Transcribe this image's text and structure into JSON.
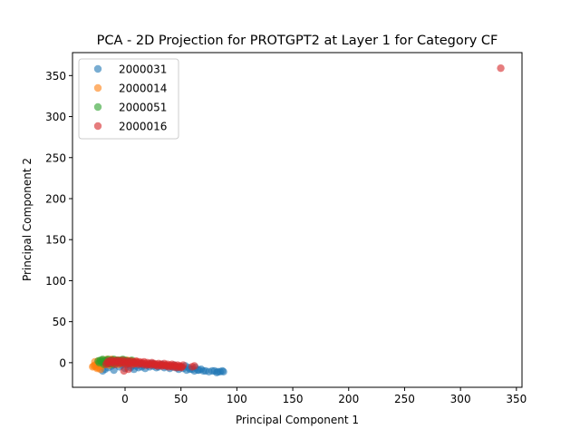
{
  "chart_data": {
    "type": "scatter",
    "title": "PCA - 2D Projection for PROTGPT2 at Layer 1 for Category CF",
    "xlabel": "Principal Component 1",
    "ylabel": "Principal Component 2",
    "xlim": [
      -47,
      355
    ],
    "ylim": [
      -30,
      378
    ],
    "xticks": [
      0,
      50,
      100,
      150,
      200,
      250,
      300,
      350
    ],
    "yticks": [
      0,
      50,
      100,
      150,
      200,
      250,
      300,
      350
    ],
    "grid": false,
    "legend_position": "top-left",
    "series": [
      {
        "name": "2000031",
        "color": "#1f77b4",
        "points": [
          [
            -20,
            -10
          ],
          [
            -18,
            -8
          ],
          [
            -15,
            -6
          ],
          [
            -12,
            -4
          ],
          [
            -10,
            -9
          ],
          [
            -5,
            -5
          ],
          [
            0,
            -7
          ],
          [
            5,
            -6
          ],
          [
            8,
            -8
          ],
          [
            10,
            -4
          ],
          [
            12,
            -6
          ],
          [
            15,
            -5
          ],
          [
            18,
            -7
          ],
          [
            20,
            -3
          ],
          [
            22,
            -5
          ],
          [
            25,
            -4
          ],
          [
            28,
            -6
          ],
          [
            30,
            -5
          ],
          [
            32,
            -3
          ],
          [
            35,
            -6
          ],
          [
            38,
            -4
          ],
          [
            40,
            -7
          ],
          [
            42,
            -5
          ],
          [
            45,
            -6
          ],
          [
            48,
            -8
          ],
          [
            50,
            -5
          ],
          [
            52,
            -7
          ],
          [
            55,
            -9
          ],
          [
            57,
            -6
          ],
          [
            60,
            -8
          ],
          [
            62,
            -10
          ],
          [
            65,
            -9
          ],
          [
            68,
            -8
          ],
          [
            70,
            -10
          ],
          [
            75,
            -11
          ],
          [
            80,
            -10
          ],
          [
            82,
            -12
          ],
          [
            85,
            -11
          ],
          [
            87,
            -10
          ],
          [
            88,
            -11
          ],
          [
            83,
            -11
          ],
          [
            78,
            -10
          ],
          [
            72,
            -10
          ],
          [
            66,
            -9
          ],
          [
            58,
            -8
          ],
          [
            47,
            -6
          ],
          [
            36,
            -4
          ],
          [
            26,
            -2
          ],
          [
            16,
            -3
          ],
          [
            6,
            -4
          ],
          [
            -3,
            -3
          ],
          [
            -8,
            -2
          ],
          [
            2,
            -2
          ],
          [
            14,
            -1
          ],
          [
            24,
            -1
          ],
          [
            33,
            -2
          ],
          [
            44,
            -3
          ],
          [
            54,
            -4
          ],
          [
            63,
            -6
          ]
        ]
      },
      {
        "name": "2000014",
        "color": "#ff7f0e",
        "points": [
          [
            -28,
            -4
          ],
          [
            -27,
            -3
          ],
          [
            -26,
            -5
          ],
          [
            -25,
            -2
          ],
          [
            -24,
            -6
          ],
          [
            -23,
            -1
          ],
          [
            -22,
            -4
          ],
          [
            -21,
            0
          ],
          [
            -20,
            -3
          ],
          [
            -19,
            1
          ],
          [
            -18,
            -2
          ],
          [
            -17,
            2
          ],
          [
            -16,
            -1
          ],
          [
            -15,
            1
          ],
          [
            -14,
            -3
          ],
          [
            -13,
            0
          ],
          [
            -12,
            2
          ],
          [
            -11,
            -1
          ],
          [
            -10,
            1
          ],
          [
            -9,
            3
          ],
          [
            -8,
            0
          ],
          [
            -7,
            2
          ],
          [
            -6,
            -2
          ],
          [
            -5,
            1
          ],
          [
            -4,
            3
          ],
          [
            -3,
            0
          ],
          [
            -2,
            2
          ],
          [
            0,
            1
          ],
          [
            2,
            3
          ],
          [
            4,
            0
          ],
          [
            6,
            2
          ],
          [
            8,
            -1
          ],
          [
            10,
            1
          ],
          [
            -25,
            -7
          ],
          [
            -22,
            -8
          ],
          [
            -29,
            -5
          ],
          [
            -27,
            1
          ],
          [
            -24,
            2
          ],
          [
            -20,
            3
          ],
          [
            -16,
            4
          ],
          [
            -12,
            4
          ]
        ]
      },
      {
        "name": "2000051",
        "color": "#2ca02c",
        "points": [
          [
            -24,
            2
          ],
          [
            -23,
            0
          ],
          [
            -22,
            3
          ],
          [
            -21,
            1
          ],
          [
            -20,
            4
          ],
          [
            -19,
            2
          ],
          [
            -18,
            0
          ],
          [
            -17,
            3
          ],
          [
            -16,
            1
          ],
          [
            -15,
            4
          ],
          [
            -14,
            2
          ],
          [
            -13,
            -1
          ],
          [
            -12,
            3
          ],
          [
            -11,
            1
          ],
          [
            -10,
            4
          ],
          [
            -9,
            2
          ],
          [
            -8,
            0
          ],
          [
            -7,
            3
          ],
          [
            -6,
            1
          ],
          [
            -5,
            3
          ],
          [
            -4,
            0
          ],
          [
            -3,
            2
          ],
          [
            -2,
            4
          ],
          [
            -1,
            1
          ],
          [
            0,
            3
          ],
          [
            1,
            0
          ],
          [
            2,
            2
          ],
          [
            4,
            1
          ],
          [
            6,
            3
          ],
          [
            8,
            0
          ],
          [
            -19,
            -2
          ],
          [
            -15,
            -1
          ],
          [
            -11,
            -2
          ]
        ]
      },
      {
        "name": "2000016",
        "color": "#d62728",
        "points": [
          [
            -17,
            -2
          ],
          [
            -16,
            0
          ],
          [
            -15,
            2
          ],
          [
            -14,
            -1
          ],
          [
            -13,
            1
          ],
          [
            -12,
            3
          ],
          [
            -11,
            0
          ],
          [
            -10,
            2
          ],
          [
            -9,
            -2
          ],
          [
            -8,
            1
          ],
          [
            -7,
            3
          ],
          [
            -6,
            0
          ],
          [
            -5,
            2
          ],
          [
            -4,
            -1
          ],
          [
            -3,
            1
          ],
          [
            -2,
            3
          ],
          [
            -1,
            -1
          ],
          [
            0,
            1
          ],
          [
            1,
            -2
          ],
          [
            2,
            2
          ],
          [
            3,
            0
          ],
          [
            4,
            -1
          ],
          [
            5,
            2
          ],
          [
            6,
            0
          ],
          [
            7,
            -2
          ],
          [
            8,
            1
          ],
          [
            9,
            -1
          ],
          [
            10,
            2
          ],
          [
            11,
            0
          ],
          [
            12,
            -2
          ],
          [
            13,
            1
          ],
          [
            14,
            -1
          ],
          [
            15,
            0
          ],
          [
            16,
            -2
          ],
          [
            17,
            1
          ],
          [
            18,
            -1
          ],
          [
            19,
            -3
          ],
          [
            20,
            0
          ],
          [
            21,
            -2
          ],
          [
            22,
            -1
          ],
          [
            23,
            -3
          ],
          [
            24,
            0
          ],
          [
            25,
            -2
          ],
          [
            26,
            -1
          ],
          [
            27,
            -3
          ],
          [
            28,
            -2
          ],
          [
            29,
            -4
          ],
          [
            30,
            -1
          ],
          [
            31,
            -3
          ],
          [
            32,
            -2
          ],
          [
            33,
            -4
          ],
          [
            34,
            -3
          ],
          [
            35,
            -1
          ],
          [
            36,
            -3
          ],
          [
            37,
            -4
          ],
          [
            38,
            -2
          ],
          [
            39,
            -5
          ],
          [
            40,
            -3
          ],
          [
            41,
            -4
          ],
          [
            42,
            -2
          ],
          [
            43,
            -5
          ],
          [
            44,
            -3
          ],
          [
            45,
            -4
          ],
          [
            46,
            -6
          ],
          [
            47,
            -3
          ],
          [
            48,
            -5
          ],
          [
            49,
            -4
          ],
          [
            50,
            -6
          ],
          [
            51,
            -5
          ],
          [
            52,
            -3
          ],
          [
            60,
            -5
          ],
          [
            62,
            -4
          ],
          [
            -1,
            -10
          ],
          [
            3,
            -8
          ],
          [
            336,
            359
          ]
        ]
      }
    ]
  }
}
